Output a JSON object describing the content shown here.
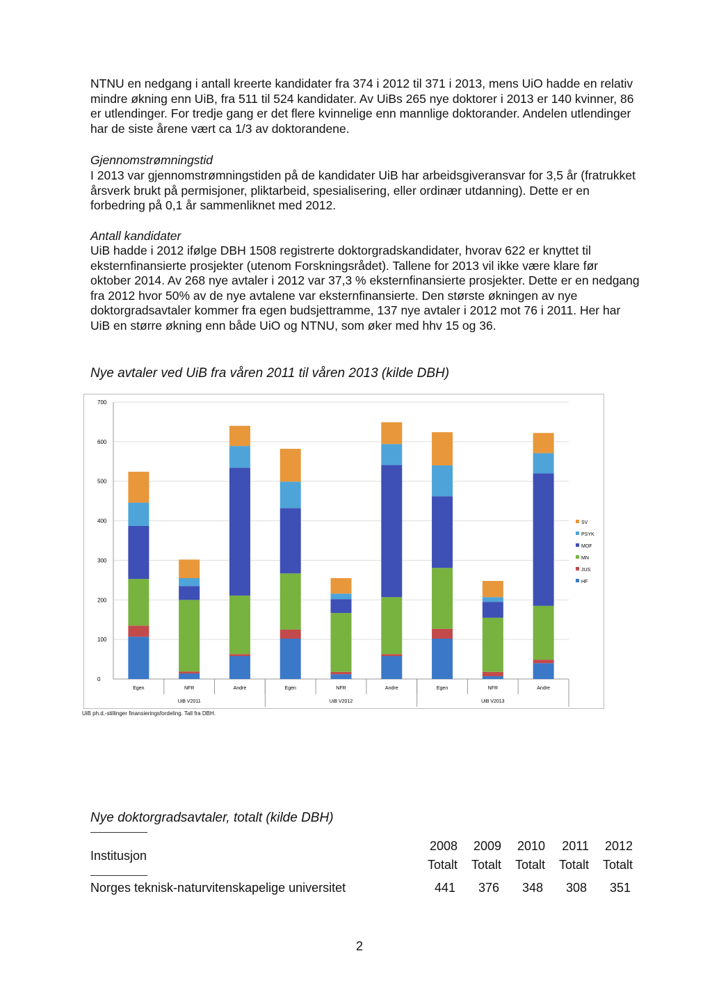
{
  "paragraphs": [
    "NTNU en nedgang i antall kreerte kandidater fra 374 i 2012 til 371 i 2013, mens UiO hadde en relativ mindre økning enn UiB, fra 511 til 524 kandidater. Av UiBs 265 nye doktorer i 2013 er 140 kvinner, 86 er utlendinger. For tredje gang er det flere kvinnelige enn mannlige doktorander. Andelen utlendinger har de siste årene vært ca 1/3 av doktorandene."
  ],
  "sections": [
    {
      "heading": "Gjennomstrømningstid",
      "text": "I 2013 var gjennomstrømningstiden på de kandidater UiB har arbeidsgiveransvar for 3,5 år (fratrukket årsverk brukt på permisjoner, pliktarbeid, spesialisering, eller ordinær utdanning). Dette er en forbedring på 0,1 år sammenliknet med 2012."
    },
    {
      "heading": "Antall kandidater",
      "text": "UiB hadde i 2012 ifølge DBH 1508 registrerte doktorgradskandidater, hvorav 622 er knyttet til eksternfinansierte prosjekter (utenom Forskningsrådet). Tallene for 2013 vil ikke være klare før oktober 2014. Av 268 nye avtaler i 2012 var 37,3 % eksternfinansierte prosjekter. Dette er en nedgang fra 2012 hvor 50% av de nye avtalene var eksternfinansierte. Den største økningen av nye doktorgradsavtaler kommer fra egen budsjettramme, 137 nye avtaler i 2012 mot 76 i 2011. Her har UiB en større økning enn både UiO og NTNU, som øker med hhv 15 og 36."
    }
  ],
  "chart_caption": "Nye avtaler ved UiB fra våren 2011 til våren 2013 (kilde DBH)",
  "chart_data": {
    "type": "stacked-bar",
    "categories": [
      "Egen",
      "NFR",
      "Andre",
      "Egen",
      "NFR",
      "Andre",
      "Egen",
      "NFR",
      "Andre"
    ],
    "groups": [
      "UiB V2011",
      "UiB V2012",
      "UiB V2013"
    ],
    "ylim": [
      0,
      700
    ],
    "yticks": [
      0,
      100,
      200,
      300,
      400,
      500,
      600,
      700
    ],
    "grid": true,
    "legend": "right",
    "note": "UiB ph.d.-stillinger finansieringsfordeling. Tall fra DBH.",
    "series": [
      {
        "name": "HF",
        "color": "#3b78c8",
        "values": [
          107,
          14,
          58,
          102,
          12,
          58,
          102,
          7,
          40
        ]
      },
      {
        "name": "JUS",
        "color": "#c24a4a",
        "values": [
          28,
          5,
          5,
          23,
          6,
          5,
          25,
          11,
          9
        ]
      },
      {
        "name": "MN",
        "color": "#78b23f",
        "values": [
          118,
          181,
          148,
          142,
          149,
          144,
          154,
          137,
          136
        ]
      },
      {
        "name": "MOF",
        "color": "#3e4fb5",
        "values": [
          134,
          35,
          323,
          165,
          35,
          334,
          181,
          40,
          335
        ]
      },
      {
        "name": "PSYK",
        "color": "#4ea4d8",
        "values": [
          59,
          20,
          55,
          67,
          14,
          53,
          78,
          12,
          51
        ]
      },
      {
        "name": "SV",
        "color": "#e8973a",
        "values": [
          78,
          47,
          51,
          83,
          39,
          55,
          84,
          41,
          51
        ]
      }
    ]
  },
  "table": {
    "caption": "Nye doktorgradsavtaler, totalt (kilde DBH)",
    "header": "Institusjon",
    "columns": [
      {
        "year": "2008",
        "sub": "Totalt"
      },
      {
        "year": "2009",
        "sub": "Totalt"
      },
      {
        "year": "2010",
        "sub": "Totalt"
      },
      {
        "year": "2011",
        "sub": "Totalt"
      },
      {
        "year": "2012",
        "sub": "Totalt"
      }
    ],
    "rows": [
      {
        "label": "Norges teknisk-naturvitenskapelige universitet",
        "values": [
          441,
          376,
          348,
          308,
          351
        ]
      }
    ]
  },
  "page_number": "2"
}
